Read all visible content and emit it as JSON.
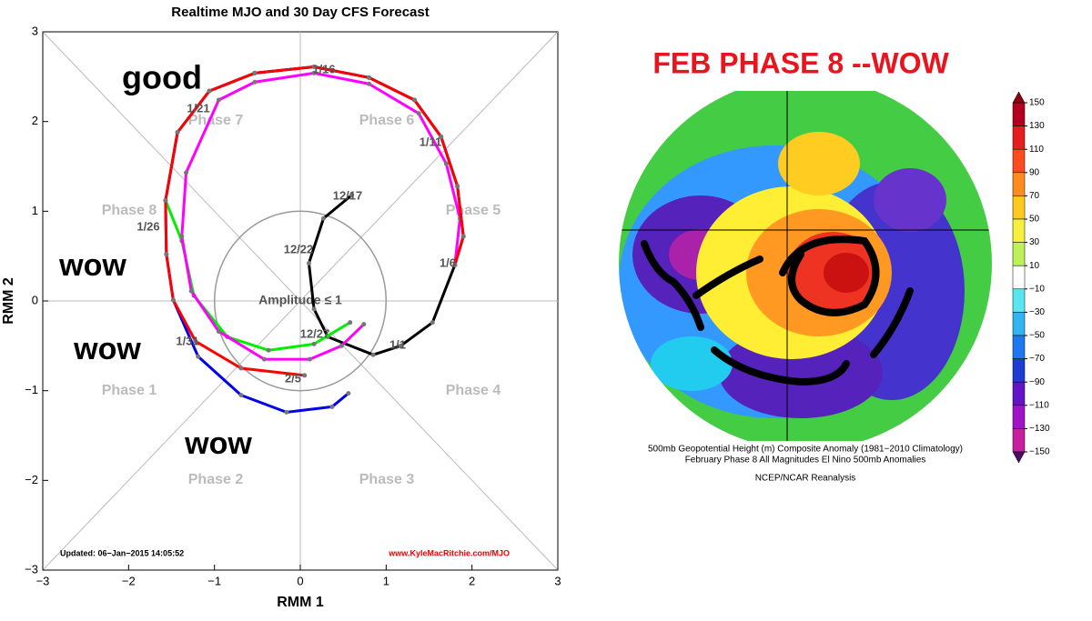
{
  "chart_data": {
    "type": "line",
    "title": "Realtime MJO and 30 Day CFS Forecast",
    "xlabel": "RMM 1",
    "ylabel": "RMM 2",
    "xlim": [
      -3,
      3
    ],
    "ylim": [
      -3,
      3
    ],
    "xticks": [
      {
        "value": -3,
        "label": "−3"
      },
      {
        "value": -2,
        "label": "−2"
      },
      {
        "value": -1,
        "label": "−1"
      },
      0,
      1,
      2,
      3
    ],
    "yticks": [
      {
        "value": -3,
        "label": "−3"
      },
      {
        "value": -2,
        "label": "−2"
      },
      {
        "value": -1,
        "label": "−1"
      },
      0,
      1,
      2,
      3
    ],
    "phase_labels": [
      "Phase 1",
      "Phase 2",
      "Phase 3",
      "Phase 4",
      "Phase 5",
      "Phase 6",
      "Phase 7",
      "Phase 8"
    ],
    "amplitude_label": "Amplitude ≤ 1",
    "date_labels": [
      "12/17",
      "12/22",
      "12/27",
      "1/1",
      "1/6",
      "1/11",
      "1/16",
      "1/21",
      "1/26",
      "1/31",
      "2/5"
    ],
    "updated": "Updated: 06−Jan−2015 14:05:52",
    "credit": "www.KyleMacRitchie.com/MJO",
    "annotations": [
      "good",
      "wow",
      "wow",
      "wow"
    ],
    "series": [
      {
        "color": "#000000",
        "x": [
          0.6,
          0.27,
          0.1,
          0.16,
          0.32,
          0.85,
          1.17,
          1.54,
          1.8
        ],
        "values": [
          1.18,
          0.92,
          0.42,
          -0.09,
          -0.4,
          -0.6,
          -0.5,
          -0.24,
          0.4
        ]
      },
      {
        "color": "#00ee00",
        "x": [
          1.8,
          1.9,
          1.83,
          1.64,
          1.33,
          0.8,
          0.16,
          -0.53,
          -1.06,
          -1.43,
          -1.57,
          -1.38,
          -1.24,
          -0.85,
          -0.37,
          0.16,
          0.58
        ],
        "values": [
          0.4,
          0.72,
          1.28,
          1.83,
          2.24,
          2.49,
          2.61,
          2.54,
          2.34,
          1.88,
          1.12,
          0.67,
          0.06,
          -0.4,
          -0.55,
          -0.48,
          -0.24
        ]
      },
      {
        "color": "#ff00ff",
        "x": [
          1.8,
          1.86,
          1.7,
          1.38,
          0.8,
          0.16,
          -0.53,
          -0.95,
          -1.33,
          -1.38,
          -1.27,
          -0.95,
          -0.42,
          0.11,
          0.48,
          0.74
        ],
        "values": [
          0.4,
          0.92,
          1.53,
          2.09,
          2.42,
          2.54,
          2.44,
          2.24,
          1.43,
          0.72,
          0.11,
          -0.34,
          -0.65,
          -0.65,
          -0.5,
          -0.26
        ]
      },
      {
        "color": "#0000ee",
        "x": [
          1.8,
          1.9,
          1.83,
          1.64,
          1.33,
          0.8,
          0.16,
          -0.53,
          -1.06,
          -1.43,
          -1.57,
          -1.56,
          -1.48,
          -1.19,
          -0.69,
          -0.16,
          0.37,
          0.56
        ],
        "values": [
          0.4,
          0.72,
          1.28,
          1.83,
          2.24,
          2.49,
          2.61,
          2.54,
          2.34,
          1.88,
          1.12,
          0.52,
          0.01,
          -0.62,
          -1.05,
          -1.24,
          -1.18,
          -1.03
        ]
      },
      {
        "color": "#ff0000",
        "x": [
          1.8,
          1.9,
          1.83,
          1.64,
          1.33,
          0.8,
          0.16,
          -0.53,
          -1.06,
          -1.43,
          -1.57,
          -1.56,
          -1.48,
          -1.22,
          -0.69,
          0.05
        ],
        "values": [
          0.4,
          0.72,
          1.28,
          1.83,
          2.24,
          2.49,
          2.61,
          2.54,
          2.34,
          1.88,
          1.12,
          0.52,
          0.01,
          -0.45,
          -0.75,
          -0.83
        ]
      }
    ]
  },
  "map_panel": {
    "title": "FEB PHASE 8 --WOW",
    "caption": [
      "500mb Geopotential Height (m) Composite Anomaly (1981−2010 Climatology)",
      "February Phase 8 All Magnitudes El Nino 500mb Anomalies",
      "NCEP/NCAR Reanalysis"
    ],
    "colorbar_ticks": [
      150,
      130,
      110,
      90,
      70,
      50,
      30,
      10,
      {
        "value": -10,
        "label": "−10"
      },
      {
        "value": -30,
        "label": "−30"
      },
      {
        "value": -50,
        "label": "−50"
      },
      {
        "value": -70,
        "label": "−70"
      },
      {
        "value": -90,
        "label": "−90"
      },
      {
        "value": -110,
        "label": "−110"
      },
      {
        "value": -130,
        "label": "−130"
      },
      {
        "value": -150,
        "label": "−150"
      }
    ]
  }
}
